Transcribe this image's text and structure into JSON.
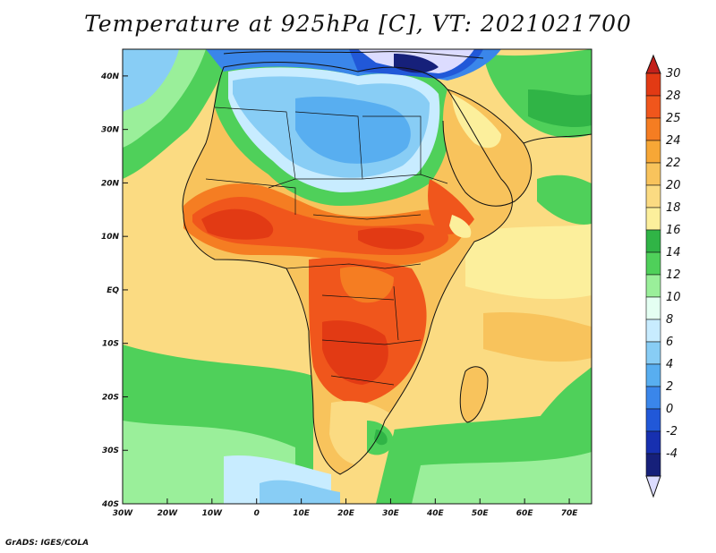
{
  "title": "Temperature at 925hPa [C], VT: 2021021700",
  "credit": "GrADS: IGES/COLA",
  "map": {
    "region": "Africa and surrounding oceans",
    "variable": "Temperature at 925hPa",
    "units": "C",
    "valid_time": "2021021700",
    "lon_range": [
      -30,
      75
    ],
    "lat_range": [
      -40,
      45
    ],
    "x_ticks": [
      "30W",
      "20W",
      "10W",
      "0",
      "10E",
      "20E",
      "30E",
      "40E",
      "50E",
      "60E",
      "70E"
    ],
    "y_ticks": [
      "40N",
      "30N",
      "20N",
      "10N",
      "EQ",
      "10S",
      "20S",
      "30S",
      "40S"
    ]
  },
  "colorbar": {
    "labels": [
      "30",
      "28",
      "25",
      "24",
      "22",
      "20",
      "18",
      "16",
      "14",
      "12",
      "10",
      "8",
      "6",
      "4",
      "2",
      "0",
      "-2",
      "-4"
    ],
    "colors": [
      "#e23a14",
      "#f0561c",
      "#f57d22",
      "#f7a736",
      "#f8c35c",
      "#fbdb82",
      "#fcef9c",
      "#30b446",
      "#4fd05a",
      "#9aef9a",
      "#e4fff2",
      "#c8ecff",
      "#88cdf5",
      "#58aef0",
      "#3a86ea",
      "#2158d8",
      "#1730b0",
      "#16207a"
    ],
    "top_triangle_color": "#c2201a",
    "bottom_triangle_color": "#dcdcff"
  },
  "palette": {
    "ocean_warm": "#fbdb82",
    "ocean_mid": "#f8c35c",
    "ocean_cool": "#4fd05a",
    "ocean_cold": "#9aef9a",
    "hot_core": "#e23a14",
    "hot": "#f0561c",
    "warm": "#f57d22",
    "sahara_cool": "#88cdf5",
    "sahara_cold": "#58aef0",
    "med": "#3a86ea",
    "coast": "#111111"
  }
}
